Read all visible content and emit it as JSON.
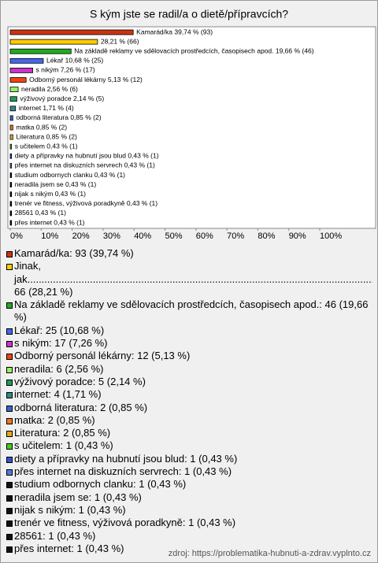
{
  "chart_data": {
    "type": "bar",
    "orientation": "horizontal",
    "title": "S kým jste se radil/a o dietě/přípravcích?",
    "values": [
      39.74,
      28.21,
      19.66,
      10.68,
      7.26,
      5.13,
      2.56,
      2.14,
      1.71,
      0.85,
      0.85,
      0.85,
      0.43,
      0.43,
      0.43,
      0.43,
      0.43,
      0.43,
      0.43,
      0.43,
      0.43
    ],
    "value_labels": [
      "Kamarád/ka 39,74 % (93)",
      "28,21 % (66)",
      "Na základě reklamy ve sdělovacích prostředcích, časopisech apod. 19,66 % (46)",
      "Lékař 10,68 % (25)",
      "s nikým 7,26 % (17)",
      "Odborný personál lékárny 5,13 % (12)",
      "neradila 2,56 % (6)",
      "výživový poradce 2,14 % (5)",
      "internet 1,71 % (4)",
      "odborná literatura 0,85 % (2)",
      "matka 0,85 % (2)",
      "Literatura 0,85 % (2)",
      "s učitelem 0,43 % (1)",
      "diety a přípravky na hubnutí jsou blud 0,43 % (1)",
      "přes internet na diskuzních servrech 0,43 % (1)",
      "studium odbornych clanku 0,43 % (1)",
      "neradila jsem se 0,43 % (1)",
      "nijak s nikým 0,43 % (1)",
      "trenér ve fitness, výživová poradkyně 0,43 % (1)",
      "28561 0,43 % (1)",
      "přes internet 0,43 % (1)"
    ],
    "legend_labels": [
      "Kamarád/ka: 93 (39,74 %)",
      "Jinak,\njak..........................................................................................................................................\n66 (28,21 %)",
      "Na základě reklamy ve sdělovacích prostředcích, časopisech apod.: 46 (19,66 %)",
      "Lékař: 25 (10,68 %)",
      "s nikým: 17 (7,26 %)",
      "Odborný personál lékárny: 12 (5,13 %)",
      "neradila: 6 (2,56 %)",
      "výživový poradce: 5 (2,14 %)",
      "internet: 4 (1,71 %)",
      "odborná literatura: 2 (0,85 %)",
      "matka: 2 (0,85 %)",
      "Literatura: 2 (0,85 %)",
      "s učitelem: 1 (0,43 %)",
      "diety a přípravky na hubnutí jsou blud: 1 (0,43 %)",
      "přes internet na diskuzních servrech: 1 (0,43 %)",
      "studium odbornych clanku: 1 (0,43 %)",
      "neradila jsem se: 1 (0,43 %)",
      "nijak s nikým: 1 (0,43 %)",
      "trenér ve fitness, výživová poradkyně: 1 (0,43 %)",
      "28561: 1 (0,43 %)",
      "přes internet: 1 (0,43 %)"
    ],
    "colors": [
      "#cc3311",
      "#ffcc00",
      "#22aa22",
      "#4466ee",
      "#cc33cc",
      "#ee4411",
      "#99ee66",
      "#229955",
      "#338888",
      "#3366cc",
      "#ee7722",
      "#ddaa22",
      "#44cc22",
      "#3355cc",
      "#5577dd",
      "#111111",
      "#111111",
      "#111111",
      "#111111",
      "#111111",
      "#111111"
    ],
    "xlim": [
      0,
      100
    ],
    "xticks": [
      {
        "value": 0,
        "label": "0%"
      },
      {
        "value": 10,
        "label": "10%"
      },
      {
        "value": 20,
        "label": "20%"
      },
      {
        "value": 30,
        "label": "30%"
      },
      {
        "value": 40,
        "label": "40%"
      },
      {
        "value": 50,
        "label": "50%"
      },
      {
        "value": 60,
        "label": "60%"
      },
      {
        "value": 70,
        "label": "70%"
      },
      {
        "value": 80,
        "label": "80%"
      },
      {
        "value": 90,
        "label": "90%"
      },
      {
        "value": 100,
        "label": "100%"
      }
    ],
    "grid": false,
    "source": "zdroj: https://problematika-hubnuti-a-zdrav.vyplnto.cz"
  }
}
